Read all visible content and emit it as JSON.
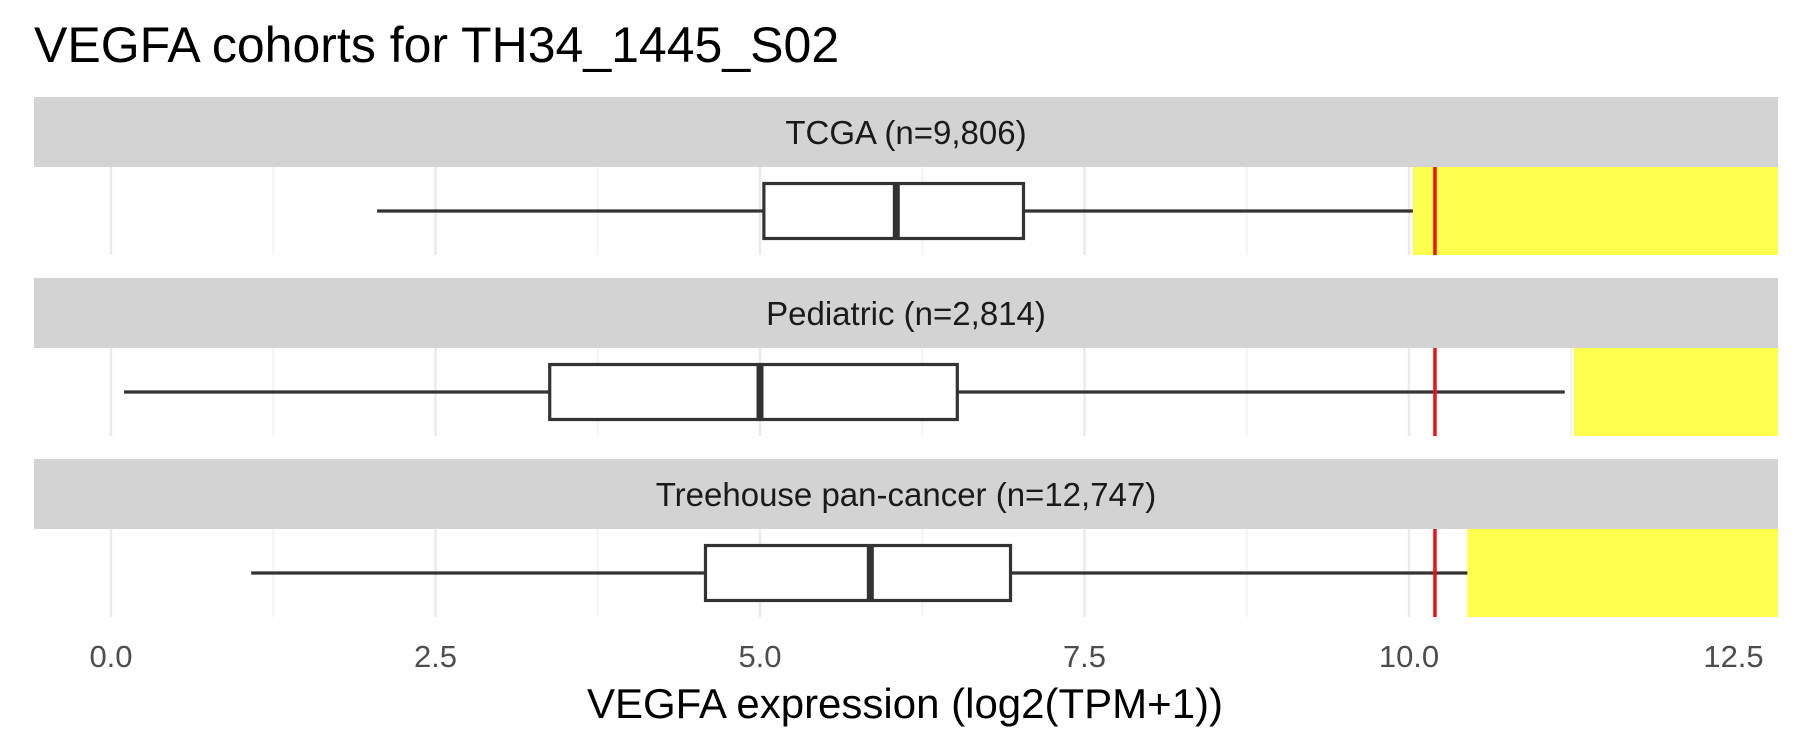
{
  "chart_data": {
    "type": "boxplot",
    "title": "VEGFA cohorts for TH34_1445_S02",
    "xlabel": "VEGFA expression (log2(TPM+1))",
    "ylabel": "",
    "xlim": [
      -0.35,
      12.9
    ],
    "x_ticks": [
      0.0,
      2.5,
      5.0,
      7.5,
      10.0,
      12.5
    ],
    "x_tick_labels": [
      "0.0",
      "2.5",
      "5.0",
      "7.5",
      "10.0",
      "12.5"
    ],
    "grid": true,
    "orientation": "horizontal",
    "sample_value": 10.2,
    "panels": [
      {
        "label": "TCGA (n=9,806)",
        "whisker_low": 2.05,
        "q1": 5.03,
        "median": 6.05,
        "q3": 7.03,
        "whisker_high": 10.03,
        "highlight_range": [
          10.03,
          12.9
        ]
      },
      {
        "label": "Pediatric (n=2,814)",
        "whisker_low": 0.1,
        "q1": 3.38,
        "median": 5.0,
        "q3": 6.52,
        "whisker_high": 11.2,
        "highlight_range": [
          11.27,
          12.9
        ]
      },
      {
        "label": "Treehouse pan-cancer (n=12,747)",
        "whisker_low": 1.08,
        "q1": 4.58,
        "median": 5.85,
        "q3": 6.93,
        "whisker_high": 10.45,
        "highlight_range": [
          10.45,
          12.9
        ]
      }
    ],
    "colors": {
      "highlight": "#ffff4d",
      "sample_line": "#ee1111",
      "box_stroke": "#333333",
      "strip": "#d3d3d3"
    }
  }
}
